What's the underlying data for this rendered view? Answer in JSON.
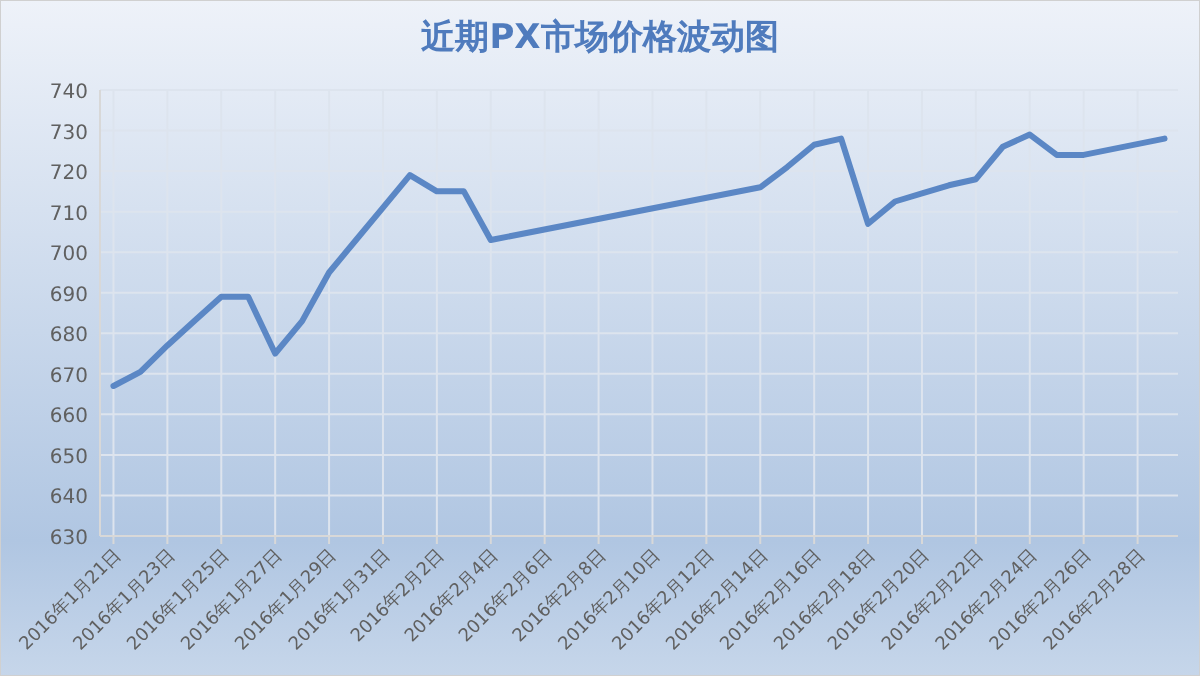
{
  "chart_data": {
    "type": "line",
    "title": "近期PX市场价格波动图",
    "x": [
      "2016-01-21",
      "2016-01-22",
      "2016-01-23",
      "2016-01-24",
      "2016-01-25",
      "2016-01-26",
      "2016-01-27",
      "2016-01-28",
      "2016-01-29",
      "2016-01-30",
      "2016-01-31",
      "2016-02-01",
      "2016-02-02",
      "2016-02-03",
      "2016-02-04",
      "2016-02-14",
      "2016-02-15",
      "2016-02-16",
      "2016-02-17",
      "2016-02-18",
      "2016-02-19",
      "2016-02-20",
      "2016-02-21",
      "2016-02-22",
      "2016-02-23",
      "2016-02-24",
      "2016-02-25",
      "2016-02-26",
      "2016-02-29"
    ],
    "series": [
      {
        "color": "#5b87c5",
        "values": [
          667,
          670.5,
          677,
          683,
          689,
          689,
          675,
          683,
          695,
          703,
          711,
          719,
          715,
          715,
          703,
          716,
          721,
          726.5,
          728,
          707,
          712.5,
          714.5,
          716.5,
          718,
          726,
          729,
          724,
          724,
          728
        ]
      }
    ],
    "xlim": [
      "2016-01-20T12:00",
      "2016-02-29T12:00"
    ],
    "xticks": [
      {
        "value": "2016-01-21",
        "label": "2016年1月21日"
      },
      {
        "value": "2016-01-23",
        "label": "2016年1月23日"
      },
      {
        "value": "2016-01-25",
        "label": "2016年1月25日"
      },
      {
        "value": "2016-01-27",
        "label": "2016年1月27日"
      },
      {
        "value": "2016-01-29",
        "label": "2016年1月29日"
      },
      {
        "value": "2016-01-31",
        "label": "2016年1月31日"
      },
      {
        "value": "2016-02-02",
        "label": "2016年2月2日"
      },
      {
        "value": "2016-02-04",
        "label": "2016年2月4日"
      },
      {
        "value": "2016-02-06",
        "label": "2016年2月6日"
      },
      {
        "value": "2016-02-08",
        "label": "2016年2月8日"
      },
      {
        "value": "2016-02-10",
        "label": "2016年2月10日"
      },
      {
        "value": "2016-02-12",
        "label": "2016年2月12日"
      },
      {
        "value": "2016-02-14",
        "label": "2016年2月14日"
      },
      {
        "value": "2016-02-16",
        "label": "2016年2月16日"
      },
      {
        "value": "2016-02-18",
        "label": "2016年2月18日"
      },
      {
        "value": "2016-02-20",
        "label": "2016年2月20日"
      },
      {
        "value": "2016-02-22",
        "label": "2016年2月22日"
      },
      {
        "value": "2016-02-24",
        "label": "2016年2月24日"
      },
      {
        "value": "2016-02-26",
        "label": "2016年2月26日"
      },
      {
        "value": "2016-02-28",
        "label": "2016年2月28日"
      }
    ],
    "ylim": [
      630,
      740
    ],
    "yticks": [
      630,
      640,
      650,
      660,
      670,
      680,
      690,
      700,
      710,
      720,
      730,
      740
    ],
    "grid": true,
    "marker": "none",
    "line_style": "solid"
  }
}
